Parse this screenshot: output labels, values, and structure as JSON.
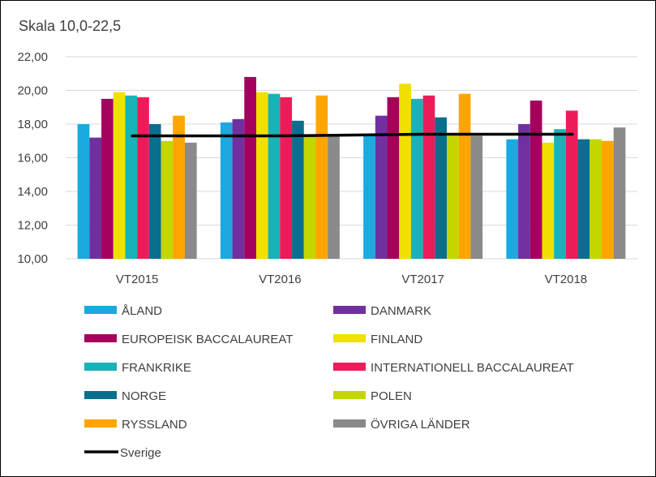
{
  "chart_data": {
    "type": "bar",
    "subtitle": "Skala 10,0-22,5",
    "categories": [
      "VT2015",
      "VT2016",
      "VT2017",
      "VT2018"
    ],
    "ylim": [
      10,
      22
    ],
    "yticks": [
      "10,00",
      "12,00",
      "14,00",
      "16,00",
      "18,00",
      "20,00",
      "22,00"
    ],
    "grid": "horizontal",
    "legend_position": "bottom",
    "series": [
      {
        "name": "ÅLAND",
        "color": "#1BA9E0",
        "values": [
          18.0,
          18.1,
          17.3,
          17.1
        ]
      },
      {
        "name": "DANMARK",
        "color": "#7030A0",
        "values": [
          17.2,
          18.3,
          18.5,
          18.0
        ]
      },
      {
        "name": "EUROPEISK BACCALAUREAT",
        "color": "#A5005D",
        "values": [
          19.5,
          20.8,
          19.6,
          19.4
        ]
      },
      {
        "name": "FINLAND",
        "color": "#F0E000",
        "values": [
          19.9,
          19.9,
          20.4,
          16.9
        ]
      },
      {
        "name": "FRANKRIKE",
        "color": "#17B3B8",
        "values": [
          19.7,
          19.8,
          19.5,
          17.7
        ]
      },
      {
        "name": "INTERNATIONELL BACCALAUREAT",
        "color": "#EC1C5A",
        "values": [
          19.6,
          19.6,
          19.7,
          18.8
        ]
      },
      {
        "name": "NORGE",
        "color": "#0A6E8F",
        "values": [
          18.0,
          18.2,
          18.4,
          17.1
        ]
      },
      {
        "name": "POLEN",
        "color": "#C4D600",
        "values": [
          17.0,
          17.3,
          17.3,
          17.1
        ]
      },
      {
        "name": "RYSSLAND",
        "color": "#FFA500",
        "values": [
          18.5,
          19.7,
          19.8,
          17.0
        ]
      },
      {
        "name": "ÖVRIGA LÄNDER",
        "color": "#8A8A8A",
        "values": [
          16.9,
          17.3,
          17.3,
          17.8
        ]
      }
    ],
    "line_series": {
      "name": "Sverige",
      "color": "#000000",
      "values": [
        17.3,
        17.3,
        17.4,
        17.4
      ]
    }
  }
}
